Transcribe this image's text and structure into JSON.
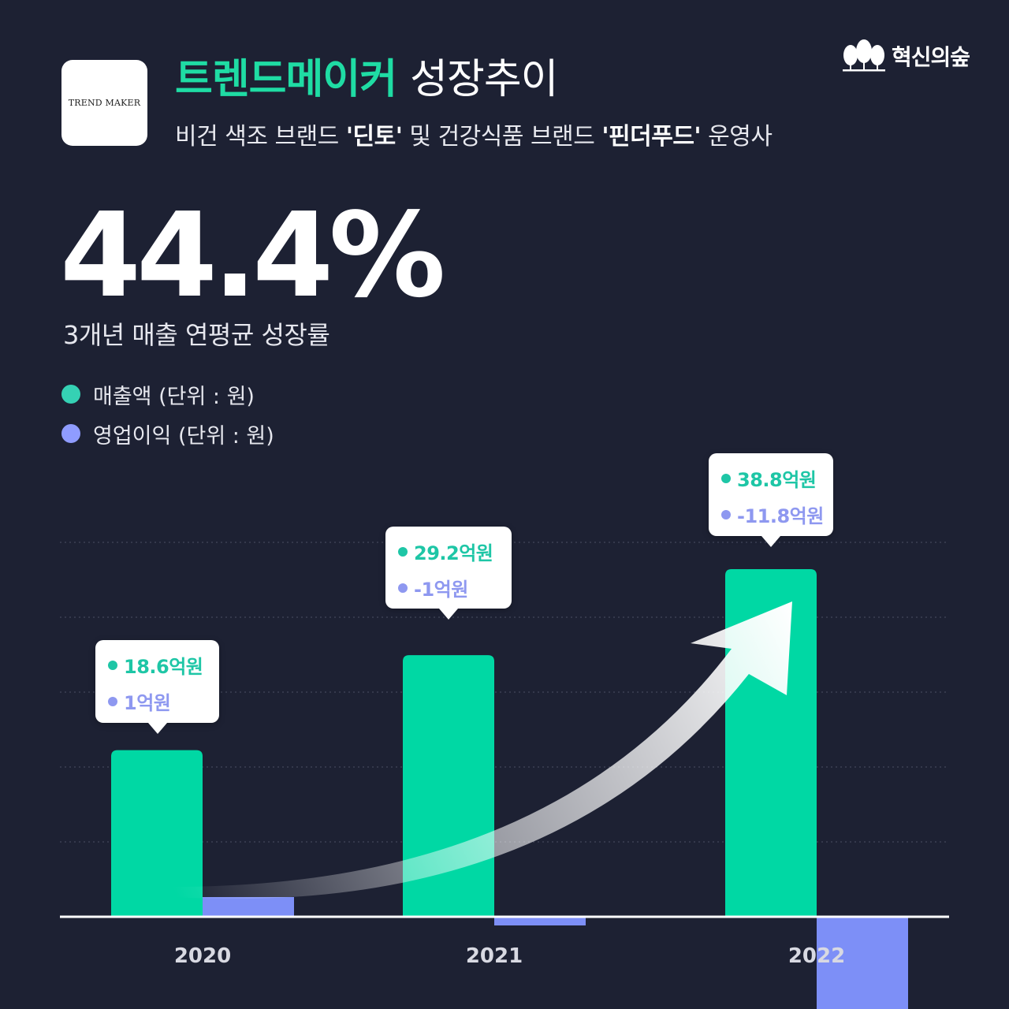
{
  "header": {
    "logo_text": "TREND MAKER",
    "title_accent": "트렌드메이커",
    "title_rest": "성장추이",
    "subtitle_prefix": "비건 색조 브랜드 ",
    "subtitle_brand1": "'딘토'",
    "subtitle_mid": " 및 건강식품 브랜드 ",
    "subtitle_brand2": "'핀더푸드'",
    "subtitle_suffix": " 운영사",
    "publisher": "혁신의숲"
  },
  "stat": {
    "value": "44.4%",
    "caption": "3개년 매출 연평균 성장률"
  },
  "legend": [
    {
      "label": "매출액 (단위 : 원)",
      "color": "#35d1b4"
    },
    {
      "label": "영업이익 (단위 : 원)",
      "color": "#8f9cff"
    }
  ],
  "colors": {
    "revenue": "#00d8a4",
    "operating_profit": "#7d8ff7",
    "revenue_text": "#1ec6a6",
    "profit_text": "#8e98f0",
    "background": "#1d2133"
  },
  "callouts": [
    {
      "revenue": "18.6억원",
      "profit": "1억원"
    },
    {
      "revenue": "29.2억원",
      "profit": "-1억원"
    },
    {
      "revenue": "38.8억원",
      "profit": "-11.8억원"
    }
  ],
  "chart_data": {
    "type": "bar",
    "categories": [
      "2020",
      "2021",
      "2022"
    ],
    "series": [
      {
        "name": "매출액",
        "values": [
          18.6,
          29.2,
          38.8
        ]
      },
      {
        "name": "영업이익",
        "values": [
          1,
          -1,
          -11.8
        ]
      }
    ],
    "ylabel": "",
    "grid": true,
    "legend_position": "top-left",
    "trend_arrow": true
  }
}
